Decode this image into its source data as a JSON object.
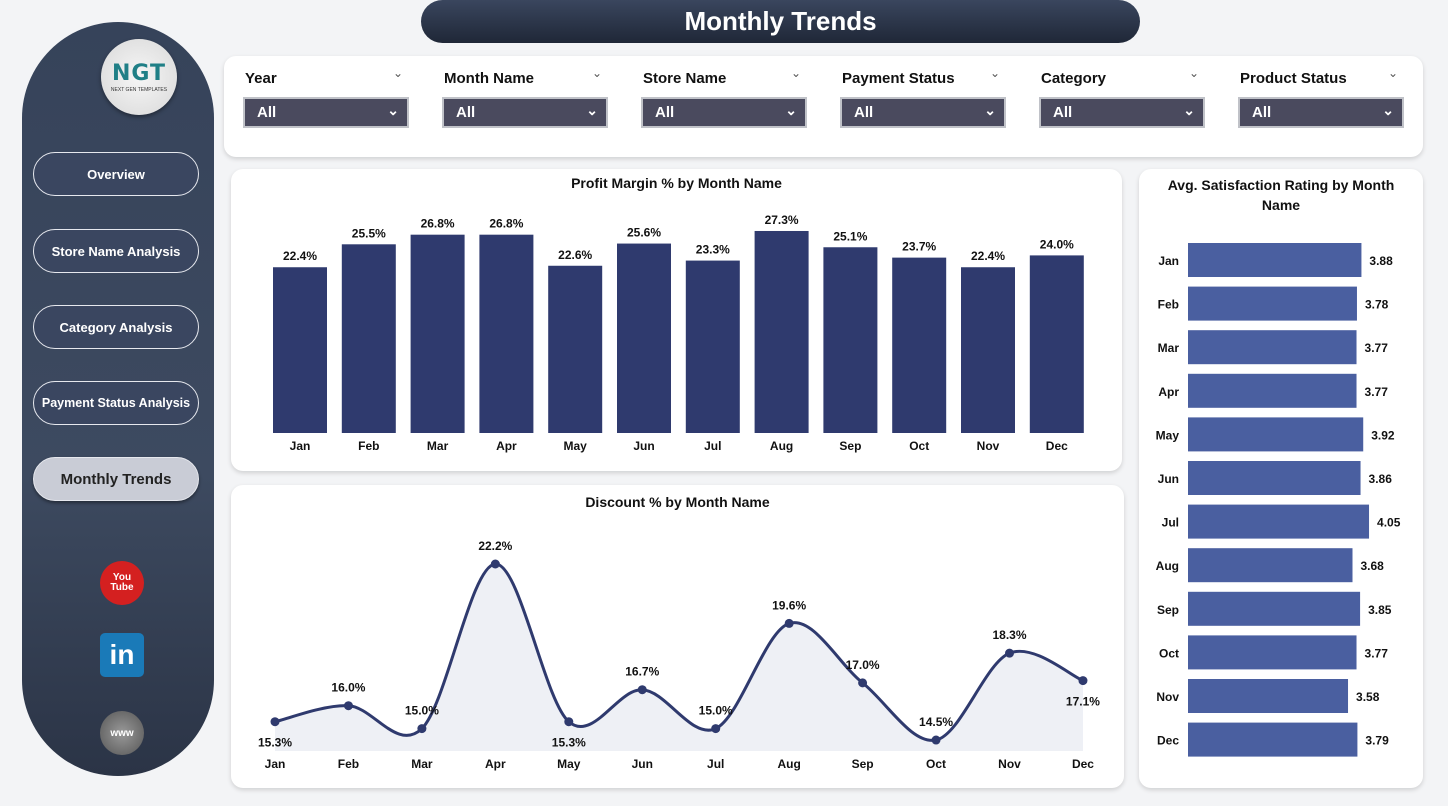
{
  "title": "Monthly Trends",
  "logo": {
    "text": "NGT",
    "subtitle": "NEXT GEN TEMPLATES"
  },
  "nav": [
    {
      "label": "Overview"
    },
    {
      "label": "Store Name Analysis"
    },
    {
      "label": "Category Analysis"
    },
    {
      "label": "Payment Status Analysis"
    },
    {
      "label": "Monthly Trends",
      "active": true
    }
  ],
  "social": [
    {
      "icon": "youtube-icon",
      "label": "You Tube"
    },
    {
      "icon": "linkedin-icon",
      "label": "in"
    },
    {
      "icon": "globe-icon",
      "label": "www"
    }
  ],
  "filters": [
    {
      "label": "Year",
      "value": "All"
    },
    {
      "label": "Month Name",
      "value": "All"
    },
    {
      "label": "Store Name",
      "value": "All"
    },
    {
      "label": "Payment Status",
      "value": "All"
    },
    {
      "label": "Category",
      "value": "All"
    },
    {
      "label": "Product Status",
      "value": "All"
    }
  ],
  "colors": {
    "bar": "#2f3a6e",
    "hbar": "#4a5fa0",
    "line": "#2f3a6e",
    "fill": "#eef0f5"
  },
  "chart_data": [
    {
      "type": "bar",
      "title": "Profit Margin % by Month Name",
      "categories": [
        "Jan",
        "Feb",
        "Mar",
        "Apr",
        "May",
        "Jun",
        "Jul",
        "Aug",
        "Sep",
        "Oct",
        "Nov",
        "Dec"
      ],
      "values": [
        22.4,
        25.5,
        26.8,
        26.8,
        22.6,
        25.6,
        23.3,
        27.3,
        25.1,
        23.7,
        22.4,
        24.0
      ],
      "labels": [
        "22.4%",
        "25.5%",
        "26.8%",
        "26.8%",
        "22.6%",
        "25.6%",
        "23.3%",
        "27.3%",
        "25.1%",
        "23.7%",
        "22.4%",
        "24.0%"
      ],
      "ylim": [
        0,
        30
      ]
    },
    {
      "type": "area",
      "title": "Discount % by Month Name",
      "categories": [
        "Jan",
        "Feb",
        "Mar",
        "Apr",
        "May",
        "Jun",
        "Jul",
        "Aug",
        "Sep",
        "Oct",
        "Nov",
        "Dec"
      ],
      "values": [
        15.3,
        16.0,
        15.0,
        22.2,
        15.3,
        16.7,
        15.0,
        19.6,
        17.0,
        14.5,
        18.3,
        17.1
      ],
      "labels": [
        "15.3%",
        "16.0%",
        "15.0%",
        "22.2%",
        "15.3%",
        "16.7%",
        "15.0%",
        "19.6%",
        "17.0%",
        "14.5%",
        "18.3%",
        "17.1%"
      ]
    },
    {
      "type": "bar",
      "orientation": "horizontal",
      "title": "Avg. Satisfaction Rating by Month Name",
      "categories": [
        "Jan",
        "Feb",
        "Mar",
        "Apr",
        "May",
        "Jun",
        "Jul",
        "Aug",
        "Sep",
        "Oct",
        "Nov",
        "Dec"
      ],
      "values": [
        3.88,
        3.78,
        3.77,
        3.77,
        3.92,
        3.86,
        4.05,
        3.68,
        3.85,
        3.77,
        3.58,
        3.79
      ],
      "labels": [
        "3.88",
        "3.78",
        "3.77",
        "3.77",
        "3.92",
        "3.86",
        "4.05",
        "3.68",
        "3.85",
        "3.77",
        "3.58",
        "3.79"
      ],
      "xlim": [
        0,
        4.5
      ]
    }
  ]
}
